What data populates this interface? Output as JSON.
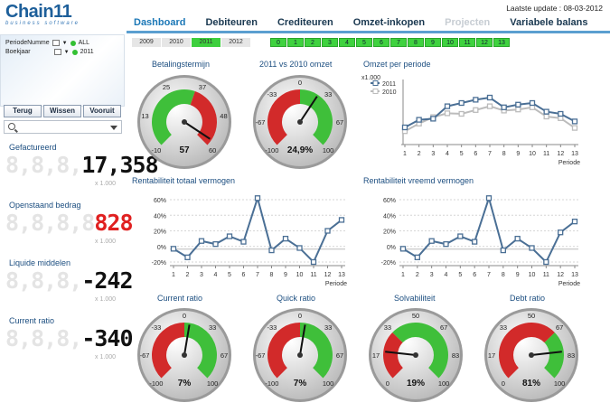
{
  "header": {
    "logo_text": "Chain11",
    "logo_sub": "business software",
    "update": "Laatste update : 08-03-2012",
    "tabs": [
      {
        "label": "Dashboard",
        "state": "active"
      },
      {
        "label": "Debiteuren",
        "state": "normal"
      },
      {
        "label": "Crediteuren",
        "state": "normal"
      },
      {
        "label": "Omzet-inkopen",
        "state": "normal"
      },
      {
        "label": "Projecten",
        "state": "disabled"
      },
      {
        "label": "Variabele balans",
        "state": "normal"
      }
    ]
  },
  "years": [
    {
      "label": "2009",
      "selected": false
    },
    {
      "label": "2010",
      "selected": false
    },
    {
      "label": "2011",
      "selected": true
    },
    {
      "label": "2012",
      "selected": false
    }
  ],
  "periods": [
    "0",
    "1",
    "2",
    "3",
    "4",
    "5",
    "6",
    "7",
    "8",
    "9",
    "10",
    "11",
    "12",
    "13"
  ],
  "selections": [
    {
      "field": "PeriodeNumme",
      "value": "ALL"
    },
    {
      "field": "Boekjaar",
      "value": "2011"
    }
  ],
  "buttons": {
    "back": "Terug",
    "clear": "Wissen",
    "forward": "Vooruit"
  },
  "kpis": [
    {
      "label": "Gefactureerd",
      "ghost": "8,8,8,",
      "value": "17,358",
      "red": false,
      "unit": "x 1.000"
    },
    {
      "label": "Openstaand bedrag",
      "ghost": "8,8,8,8",
      "value": "828",
      "red": true,
      "unit": "x 1.000"
    },
    {
      "label": "Liquide middelen",
      "ghost": "8,8,8,",
      "value": "-242",
      "red": false,
      "unit": "x 1.000"
    },
    {
      "label": "Current ratio",
      "ghost": "8,8,8,",
      "value": "-340",
      "red": false,
      "unit": "x 1.000"
    }
  ],
  "gauges": [
    {
      "title": "Betalingstermijn",
      "min": -10,
      "max": 60,
      "ticks": [
        "-10",
        "13",
        "25",
        "37",
        "48",
        "60"
      ],
      "value": 57,
      "display": "57",
      "red_from": 30
    },
    {
      "title": "2011 vs 2010 omzet",
      "min": -100,
      "max": 100,
      "ticks": [
        "-100",
        "-67",
        "-33",
        "0",
        "33",
        "67",
        "100"
      ],
      "value": 24.9,
      "display": "24,9%",
      "red_to": 0
    },
    {
      "title": "Current ratio",
      "min": -100,
      "max": 100,
      "ticks": [
        "-100",
        "-67",
        "-33",
        "0",
        "33",
        "67",
        "100"
      ],
      "value": 7,
      "display": "7%",
      "red_to": 0
    },
    {
      "title": "Quick ratio",
      "min": -100,
      "max": 100,
      "ticks": [
        "-100",
        "-67",
        "-33",
        "0",
        "33",
        "67",
        "100"
      ],
      "value": 7,
      "display": "7%",
      "red_to": 0
    },
    {
      "title": "Solvabiliteit",
      "min": 0,
      "max": 100,
      "ticks": [
        "0",
        "17",
        "33",
        "50",
        "67",
        "83",
        "100"
      ],
      "value": 19,
      "display": "19%",
      "red_to": 33
    },
    {
      "title": "Debt ratio",
      "min": 0,
      "max": 100,
      "ticks": [
        "0",
        "17",
        "33",
        "50",
        "67",
        "83",
        "100"
      ],
      "value": 81,
      "display": "81%",
      "red_to": 67
    }
  ],
  "chart_data": [
    {
      "type": "line",
      "title": "Omzet per periode",
      "ylabel": "x1.000",
      "xlabel": "Periode",
      "x": [
        1,
        2,
        3,
        4,
        5,
        6,
        7,
        8,
        9,
        10,
        11,
        12,
        13
      ],
      "ylim": [
        0,
        1000
      ],
      "series": [
        {
          "name": "2011",
          "color": "#4a6f95",
          "values": [
            250,
            390,
            410,
            640,
            700,
            760,
            800,
            620,
            670,
            700,
            540,
            500,
            360
          ]
        },
        {
          "name": "2010",
          "color": "#bcbcbc",
          "values": [
            180,
            320,
            440,
            510,
            500,
            570,
            640,
            560,
            580,
            620,
            450,
            420,
            240
          ]
        }
      ]
    },
    {
      "type": "line",
      "title": "Rentabiliteit totaal vermogen",
      "xlabel": "Periode",
      "x": [
        1,
        2,
        3,
        4,
        5,
        6,
        7,
        8,
        9,
        10,
        11,
        12,
        13
      ],
      "ylim": [
        -20,
        60
      ],
      "yticks": [
        "60%",
        "40%",
        "20%",
        "0%",
        "-20%"
      ],
      "series": [
        {
          "color": "#4a6f95",
          "values": [
            -3,
            -14,
            7,
            3,
            13,
            6,
            62,
            -5,
            10,
            -2,
            -20,
            20,
            34
          ]
        }
      ]
    },
    {
      "type": "line",
      "title": "Rentabiliteit vreemd vermogen",
      "xlabel": "Periode",
      "x": [
        1,
        2,
        3,
        4,
        5,
        6,
        7,
        8,
        9,
        10,
        11,
        12,
        13
      ],
      "ylim": [
        -20,
        60
      ],
      "yticks": [
        "60%",
        "40%",
        "20%",
        "0%",
        "-20%"
      ],
      "series": [
        {
          "color": "#4a6f95",
          "values": [
            -3,
            -14,
            7,
            3,
            13,
            6,
            62,
            -5,
            10,
            -2,
            -20,
            18,
            32
          ]
        }
      ]
    }
  ]
}
